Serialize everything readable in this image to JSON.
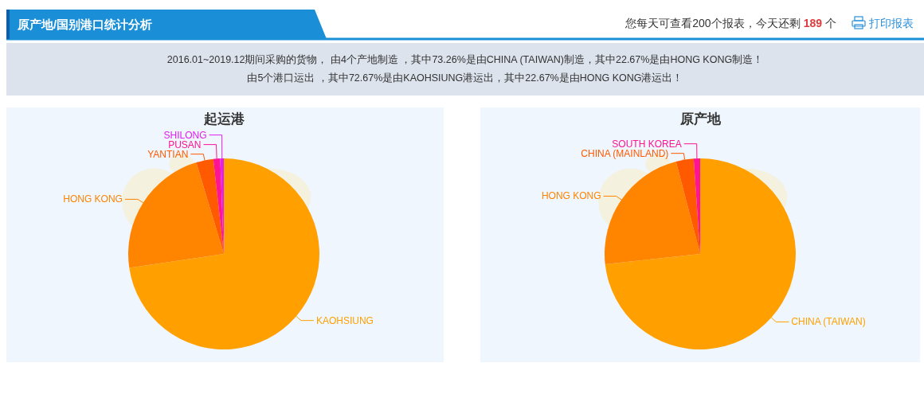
{
  "chart_data": [
    {
      "type": "other",
      "title": "原产地/国别港口统计分析",
      "annotations": [
        "您每天可查看200个报表，今天还剩",
        "189",
        "个",
        "打印报表",
        "2016.01~2019.12期间采购的货物， 由4个产地制造 ，其中73.26%是由CHINA (TAIWAN)制造，其中22.67%是由HONG KONG制造！",
        "由5个港口运出 ，其中72.67%是由KAOHSIUNG港运出，其中22.67%是由HONG KONG港运出！"
      ]
    },
    {
      "type": "pie",
      "title": "起运港",
      "categories": [
        "KAOHSIUNG",
        "HONG KONG",
        "YANTIAN",
        "PUSAN",
        "SHILONG"
      ],
      "values": [
        72.67,
        22.67,
        2.9,
        1.16,
        0.6
      ],
      "colors": [
        "#ffa000",
        "#ff8400",
        "#ff5a00",
        "#ff1493",
        "#e020f0"
      ]
    },
    {
      "type": "pie",
      "title": "原产地",
      "categories": [
        "CHINA (TAIWAN)",
        "HONG KONG",
        "CHINA (MAINLAND)",
        "SOUTH KOREA"
      ],
      "values": [
        73.26,
        22.67,
        2.99,
        1.08
      ],
      "colors": [
        "#ffa000",
        "#ff8400",
        "#ff5a00",
        "#ff1493"
      ]
    }
  ]
}
